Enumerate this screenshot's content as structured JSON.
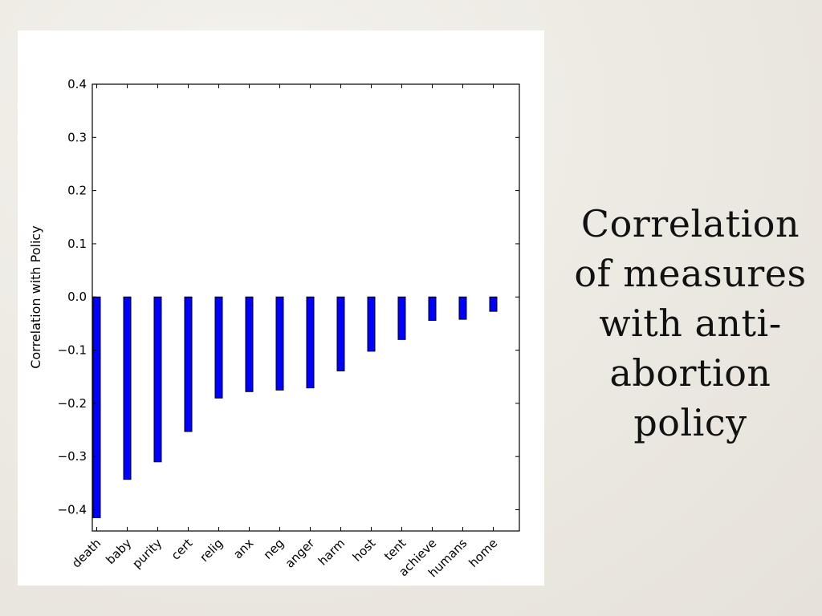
{
  "slide": {
    "caption": "Correlation of measures with anti-abortion policy"
  },
  "colors": {
    "bar_fill": "#0000ff",
    "bar_stroke": "#000000",
    "panel": "#ffffff"
  },
  "chart_data": {
    "type": "bar",
    "title": "",
    "xlabel": "",
    "ylabel": "Correlation with Policy",
    "categories": [
      "death",
      "baby",
      "purity",
      "cert",
      "relig",
      "anx",
      "neg",
      "anger",
      "harm",
      "host",
      "tent",
      "achieve",
      "humans",
      "home"
    ],
    "values": [
      -0.415,
      -0.343,
      -0.31,
      -0.253,
      -0.19,
      -0.178,
      -0.175,
      -0.171,
      -0.139,
      -0.102,
      -0.08,
      -0.044,
      -0.042,
      -0.027
    ],
    "ylim": [
      -0.44,
      0.4
    ],
    "yticks": [
      0.4,
      0.3,
      0.2,
      0.1,
      0.0,
      -0.1,
      -0.2,
      -0.3,
      -0.4
    ],
    "ytick_labels": [
      "0.4",
      "0.3",
      "0.2",
      "0.1",
      "0.0",
      "−0.1",
      "−0.2",
      "−0.3",
      "−0.4"
    ],
    "grid": false,
    "legend": "none"
  }
}
